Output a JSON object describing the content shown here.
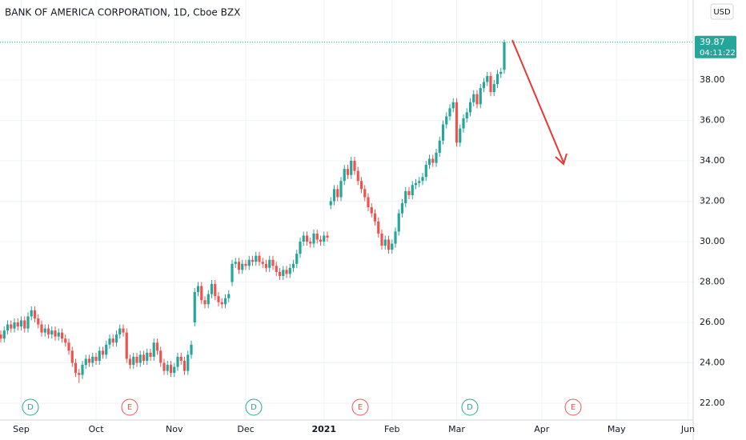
{
  "chart_data": {
    "type": "candlestick",
    "title": "BANK OF AMERICA CORPORATION, 1D, Cboe BZX",
    "currency": "USD",
    "countdown": "04:11:22",
    "up_color": "#26a69a",
    "down_color": "#ef5350",
    "grid": true,
    "ylim": [
      21.17,
      41.96
    ],
    "yticks": [
      {
        "value": 22,
        "label": "22.00"
      },
      {
        "value": 24,
        "label": "24.00"
      },
      {
        "value": 26,
        "label": "26.00"
      },
      {
        "value": 28,
        "label": "28.00"
      },
      {
        "value": 30,
        "label": "30.00"
      },
      {
        "value": 32,
        "label": "32.00"
      },
      {
        "value": 34,
        "label": "34.00"
      },
      {
        "value": 36,
        "label": "36.00"
      },
      {
        "value": 38,
        "label": "38.00"
      }
    ],
    "events": [
      {
        "label": "D",
        "color": "#26a69a"
      },
      {
        "label": "E",
        "color": "#ef5350"
      },
      {
        "label": "D",
        "color": "#26a69a"
      },
      {
        "label": "E",
        "color": "#ef5350"
      },
      {
        "label": "D",
        "color": "#26a69a"
      },
      {
        "label": "E",
        "color": "#ef5350"
      }
    ],
    "categories": [
      null,
      null,
      null,
      null,
      null,
      null,
      "Sep",
      null,
      null,
      null,
      null,
      null,
      null,
      null,
      null,
      null,
      null,
      null,
      null,
      null,
      null,
      null,
      null,
      null,
      null,
      null,
      null,
      null,
      "Oct",
      null,
      null,
      null,
      null,
      null,
      null,
      null,
      null,
      null,
      null,
      null,
      null,
      null,
      null,
      null,
      null,
      null,
      null,
      null,
      null,
      null,
      null,
      "Nov",
      null,
      null,
      null,
      null,
      null,
      null,
      null,
      null,
      null,
      null,
      null,
      null,
      null,
      null,
      null,
      null,
      null,
      null,
      null,
      null,
      "Dec",
      null,
      null,
      null,
      null,
      null,
      null,
      null,
      null,
      null,
      null,
      null,
      null,
      null,
      null,
      null,
      null,
      null,
      null,
      null,
      null,
      null,
      null,
      "2021",
      null,
      null,
      null,
      null,
      null,
      null,
      null,
      null,
      null,
      null,
      null,
      null,
      null,
      null,
      null,
      null,
      null,
      null,
      null,
      "Feb",
      null,
      null,
      null,
      null,
      null,
      null,
      null,
      null,
      null,
      null,
      null,
      null,
      null,
      null,
      null,
      null,
      null,
      null,
      "Mar",
      null,
      null,
      null,
      null,
      null,
      null,
      null,
      null,
      null,
      null,
      null,
      null,
      null,
      null,
      null,
      null,
      null,
      null,
      null,
      null,
      null,
      null,
      null,
      null,
      "Apr",
      null,
      null,
      null,
      null,
      null,
      null,
      null,
      null,
      null,
      null,
      null,
      null,
      null,
      null,
      null,
      null,
      null,
      null,
      null,
      null,
      null,
      "May",
      null,
      null,
      null,
      null,
      null,
      null,
      null,
      null,
      null,
      null,
      null,
      null,
      null,
      null,
      null,
      null,
      null,
      null,
      null,
      null,
      "Jun",
      null
    ],
    "ohlc": [
      [
        25.4,
        25.6,
        25.0,
        25.2
      ],
      [
        25.2,
        25.8,
        25.0,
        25.6
      ],
      [
        25.6,
        26.1,
        25.4,
        25.9
      ],
      [
        25.9,
        26.1,
        25.5,
        25.7
      ],
      [
        25.7,
        26.2,
        25.5,
        26.0
      ],
      [
        26.0,
        26.2,
        25.6,
        25.8
      ],
      [
        25.8,
        26.3,
        25.6,
        26.1
      ],
      [
        26.1,
        26.3,
        25.5,
        25.7
      ],
      [
        25.7,
        26.5,
        25.5,
        26.3
      ],
      [
        26.3,
        26.8,
        26.1,
        26.6
      ],
      [
        26.6,
        26.8,
        26.0,
        26.2
      ],
      [
        26.2,
        26.4,
        25.7,
        25.9
      ],
      [
        25.9,
        26.1,
        25.3,
        25.5
      ],
      [
        25.5,
        25.9,
        25.3,
        25.7
      ],
      [
        25.7,
        25.9,
        25.2,
        25.4
      ],
      [
        25.4,
        25.8,
        25.2,
        25.6
      ],
      [
        25.6,
        25.8,
        25.1,
        25.3
      ],
      [
        25.3,
        25.7,
        25.1,
        25.5
      ],
      [
        25.5,
        25.7,
        25.0,
        25.2
      ],
      [
        25.2,
        25.4,
        24.8,
        25.0
      ],
      [
        25.0,
        25.2,
        24.4,
        24.6
      ],
      [
        24.6,
        24.8,
        23.8,
        24.0
      ],
      [
        24.0,
        24.2,
        23.3,
        23.5
      ],
      [
        23.5,
        23.7,
        23.0,
        23.4
      ],
      [
        23.4,
        24.1,
        23.2,
        23.9
      ],
      [
        23.9,
        24.4,
        23.7,
        24.2
      ],
      [
        24.2,
        24.4,
        23.8,
        24.0
      ],
      [
        24.0,
        24.5,
        23.8,
        24.3
      ],
      [
        24.3,
        24.5,
        23.9,
        24.1
      ],
      [
        24.1,
        24.8,
        23.9,
        24.6
      ],
      [
        24.6,
        24.8,
        24.2,
        24.4
      ],
      [
        24.4,
        25.1,
        24.2,
        24.9
      ],
      [
        24.9,
        25.4,
        24.7,
        25.2
      ],
      [
        25.2,
        25.4,
        24.8,
        25.0
      ],
      [
        25.0,
        25.6,
        24.8,
        25.4
      ],
      [
        25.4,
        25.9,
        25.2,
        25.7
      ],
      [
        25.7,
        25.9,
        25.3,
        25.5
      ],
      [
        25.5,
        25.7,
        24.0,
        24.2
      ],
      [
        24.2,
        24.4,
        23.7,
        23.9
      ],
      [
        23.9,
        24.5,
        23.7,
        24.3
      ],
      [
        24.3,
        24.5,
        23.8,
        24.0
      ],
      [
        24.0,
        24.6,
        23.8,
        24.4
      ],
      [
        24.4,
        24.6,
        23.9,
        24.1
      ],
      [
        24.1,
        24.7,
        23.9,
        24.5
      ],
      [
        24.5,
        24.7,
        24.1,
        24.3
      ],
      [
        24.3,
        25.2,
        24.1,
        25.0
      ],
      [
        25.0,
        25.2,
        24.4,
        24.6
      ],
      [
        24.6,
        24.8,
        23.8,
        24.0
      ],
      [
        24.0,
        24.2,
        23.4,
        23.6
      ],
      [
        23.6,
        24.1,
        23.4,
        23.9
      ],
      [
        23.9,
        24.1,
        23.3,
        23.5
      ],
      [
        23.5,
        24.0,
        23.3,
        23.8
      ],
      [
        23.8,
        24.5,
        23.6,
        24.3
      ],
      [
        24.3,
        24.5,
        23.9,
        24.1
      ],
      [
        24.1,
        24.3,
        23.4,
        23.6
      ],
      [
        23.6,
        24.6,
        23.4,
        24.4
      ],
      [
        24.4,
        25.1,
        24.2,
        24.9
      ],
      [
        26.0,
        27.7,
        25.8,
        27.5
      ],
      [
        27.5,
        28.0,
        27.3,
        27.8
      ],
      [
        27.8,
        28.0,
        26.9,
        27.1
      ],
      [
        27.1,
        27.3,
        26.7,
        26.9
      ],
      [
        26.9,
        27.6,
        26.7,
        27.4
      ],
      [
        27.4,
        28.1,
        27.2,
        27.9
      ],
      [
        27.9,
        28.1,
        27.1,
        27.3
      ],
      [
        27.3,
        27.5,
        26.8,
        27.0
      ],
      [
        27.0,
        27.2,
        26.7,
        26.9
      ],
      [
        26.9,
        27.4,
        26.7,
        27.2
      ],
      [
        27.2,
        27.6,
        27.0,
        27.4
      ],
      [
        28.0,
        29.1,
        27.8,
        28.9
      ],
      [
        28.9,
        29.2,
        28.7,
        29.0
      ],
      [
        29.0,
        29.2,
        28.4,
        28.6
      ],
      [
        28.6,
        29.1,
        28.4,
        28.9
      ],
      [
        28.9,
        29.1,
        28.6,
        28.8
      ],
      [
        28.8,
        29.3,
        28.6,
        29.1
      ],
      [
        29.1,
        29.3,
        28.8,
        29.0
      ],
      [
        29.0,
        29.5,
        28.8,
        29.3
      ],
      [
        29.3,
        29.5,
        28.8,
        29.0
      ],
      [
        29.0,
        29.2,
        28.7,
        28.9
      ],
      [
        28.9,
        29.1,
        28.5,
        28.7
      ],
      [
        28.7,
        29.3,
        28.5,
        29.1
      ],
      [
        29.1,
        29.3,
        28.6,
        28.8
      ],
      [
        28.8,
        29.0,
        28.3,
        28.5
      ],
      [
        28.5,
        28.7,
        28.1,
        28.3
      ],
      [
        28.3,
        28.8,
        28.1,
        28.6
      ],
      [
        28.6,
        28.8,
        28.2,
        28.4
      ],
      [
        28.4,
        28.9,
        28.2,
        28.7
      ],
      [
        28.7,
        29.1,
        28.5,
        28.9
      ],
      [
        28.9,
        29.6,
        28.7,
        29.4
      ],
      [
        29.4,
        30.2,
        29.2,
        30.0
      ],
      [
        30.0,
        30.5,
        29.8,
        30.3
      ],
      [
        30.3,
        30.5,
        29.8,
        30.0
      ],
      [
        30.0,
        30.2,
        29.7,
        29.9
      ],
      [
        29.9,
        30.6,
        29.7,
        30.4
      ],
      [
        30.4,
        30.6,
        29.9,
        30.1
      ],
      [
        30.1,
        30.3,
        29.8,
        30.0
      ],
      [
        30.0,
        30.5,
        29.8,
        30.3
      ],
      [
        30.3,
        30.5,
        30.0,
        30.2
      ],
      [
        31.8,
        32.2,
        31.6,
        32.0
      ],
      [
        32.0,
        32.8,
        31.8,
        32.6
      ],
      [
        32.6,
        32.8,
        32.0,
        32.2
      ],
      [
        32.2,
        33.2,
        32.0,
        33.0
      ],
      [
        33.0,
        33.8,
        32.8,
        33.6
      ],
      [
        33.6,
        33.8,
        33.1,
        33.3
      ],
      [
        33.3,
        34.2,
        33.1,
        34.0
      ],
      [
        34.0,
        34.2,
        33.3,
        33.5
      ],
      [
        33.5,
        33.7,
        32.8,
        33.0
      ],
      [
        33.0,
        33.2,
        32.4,
        32.6
      ],
      [
        32.6,
        32.8,
        32.0,
        32.2
      ],
      [
        32.2,
        32.4,
        31.5,
        31.7
      ],
      [
        31.7,
        31.9,
        31.2,
        31.4
      ],
      [
        31.4,
        31.6,
        30.8,
        31.0
      ],
      [
        31.0,
        31.2,
        30.2,
        30.4
      ],
      [
        30.4,
        30.6,
        29.6,
        29.8
      ],
      [
        29.8,
        30.3,
        29.6,
        30.1
      ],
      [
        30.1,
        30.3,
        29.4,
        29.6
      ],
      [
        29.6,
        30.1,
        29.4,
        29.9
      ],
      [
        29.9,
        30.7,
        29.7,
        30.5
      ],
      [
        30.5,
        31.6,
        30.3,
        31.4
      ],
      [
        31.4,
        32.1,
        31.2,
        31.9
      ],
      [
        31.9,
        32.7,
        31.7,
        32.5
      ],
      [
        32.5,
        32.7,
        32.1,
        32.3
      ],
      [
        32.3,
        33.0,
        32.1,
        32.8
      ],
      [
        32.8,
        33.1,
        32.6,
        32.9
      ],
      [
        32.9,
        33.2,
        32.7,
        33.0
      ],
      [
        33.0,
        33.4,
        32.8,
        33.2
      ],
      [
        33.2,
        34.0,
        33.0,
        33.8
      ],
      [
        33.8,
        34.3,
        33.6,
        34.1
      ],
      [
        34.1,
        34.3,
        33.7,
        33.9
      ],
      [
        33.9,
        34.6,
        33.7,
        34.4
      ],
      [
        34.4,
        35.2,
        34.2,
        35.0
      ],
      [
        35.0,
        36.0,
        34.8,
        35.8
      ],
      [
        35.8,
        36.4,
        35.6,
        36.2
      ],
      [
        36.2,
        36.8,
        36.0,
        36.6
      ],
      [
        36.6,
        37.1,
        36.4,
        36.9
      ],
      [
        36.9,
        37.1,
        34.7,
        34.9
      ],
      [
        34.9,
        35.8,
        34.7,
        35.6
      ],
      [
        35.6,
        36.3,
        35.4,
        36.1
      ],
      [
        36.1,
        36.6,
        35.9,
        36.4
      ],
      [
        36.4,
        37.1,
        36.2,
        36.9
      ],
      [
        36.9,
        37.5,
        36.7,
        37.3
      ],
      [
        37.3,
        37.5,
        36.6,
        36.8
      ],
      [
        36.8,
        37.8,
        36.6,
        37.6
      ],
      [
        37.6,
        38.1,
        37.4,
        37.9
      ],
      [
        37.9,
        38.4,
        37.7,
        38.2
      ],
      [
        38.2,
        38.4,
        37.2,
        37.4
      ],
      [
        37.4,
        38.0,
        37.2,
        37.8
      ],
      [
        37.8,
        38.5,
        37.6,
        38.3
      ],
      [
        38.3,
        38.6,
        38.1,
        38.4
      ],
      [
        38.5,
        40.0,
        38.3,
        39.87
      ],
      null,
      null,
      null,
      null,
      null,
      null,
      null,
      null,
      null,
      null,
      null,
      null,
      null,
      null,
      null,
      null,
      null,
      null,
      null,
      null,
      null,
      null,
      null,
      null,
      null,
      null,
      null,
      null,
      null,
      null,
      null,
      null,
      null,
      null,
      null,
      null,
      null,
      null,
      null,
      null,
      null,
      null,
      null,
      null,
      null,
      null,
      null,
      null,
      null,
      null,
      null,
      null,
      null,
      null,
      null
    ]
  }
}
